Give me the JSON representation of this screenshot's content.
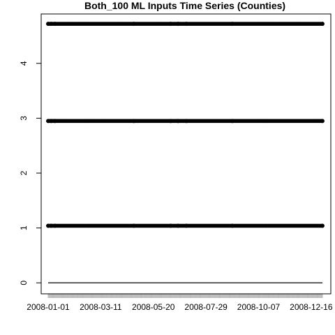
{
  "chart_data": {
    "type": "scatter",
    "title": "Both_100 ML Inputs Time Series (Counties)",
    "xlabel": "",
    "ylabel": "",
    "x_axis": {
      "type": "date",
      "range": [
        "2008-01-01",
        "2008-12-31"
      ],
      "ticks": [
        "2008-01-01",
        "2008-03-11",
        "2008-05-20",
        "2008-07-29",
        "2008-10-07",
        "2008-12-16"
      ]
    },
    "y_axis": {
      "range": [
        -0.2,
        4.9
      ],
      "ticks": [
        "0",
        "1",
        "2",
        "3",
        "4"
      ]
    },
    "grid": false,
    "legend": "none",
    "marker_color": "#000000",
    "series": [
      {
        "x_start": "2008-01-01",
        "x_end": "2008-12-31",
        "y": 4.72,
        "kind": "dense-points"
      },
      {
        "x_start": "2008-01-01",
        "x_end": "2008-12-31",
        "y": 2.95,
        "kind": "dense-points"
      },
      {
        "x_start": "2008-01-01",
        "x_end": "2008-12-31",
        "y": 1.04,
        "kind": "dense-points"
      },
      {
        "x_start": "2008-01-01",
        "x_end": "2008-12-31",
        "y": 0.0,
        "kind": "thin-line"
      }
    ],
    "highlights": [
      {
        "x": "2008-01-01",
        "y": 4.72
      },
      {
        "x": "2008-01-05",
        "y": 4.72
      },
      {
        "x": "2008-01-10",
        "y": 4.72
      },
      {
        "x": "2008-04-24",
        "y": 4.72
      },
      {
        "x": "2008-06-12",
        "y": 4.72
      },
      {
        "x": "2008-06-22",
        "y": 4.72
      },
      {
        "x": "2008-07-03",
        "y": 4.72
      },
      {
        "x": "2008-09-02",
        "y": 4.72
      },
      {
        "x": "2008-12-31",
        "y": 4.72
      },
      {
        "x": "2008-01-01",
        "y": 2.95
      },
      {
        "x": "2008-01-05",
        "y": 2.95
      },
      {
        "x": "2008-01-10",
        "y": 2.95
      },
      {
        "x": "2008-04-24",
        "y": 2.95
      },
      {
        "x": "2008-06-12",
        "y": 2.95
      },
      {
        "x": "2008-06-22",
        "y": 2.95
      },
      {
        "x": "2008-07-03",
        "y": 2.95
      },
      {
        "x": "2008-09-02",
        "y": 2.95
      },
      {
        "x": "2008-12-31",
        "y": 2.95
      },
      {
        "x": "2008-01-01",
        "y": 1.04
      },
      {
        "x": "2008-01-05",
        "y": 1.04
      },
      {
        "x": "2008-01-10",
        "y": 1.04
      },
      {
        "x": "2008-04-24",
        "y": 1.04
      },
      {
        "x": "2008-06-12",
        "y": 1.04
      },
      {
        "x": "2008-06-22",
        "y": 1.04
      },
      {
        "x": "2008-07-03",
        "y": 1.04
      },
      {
        "x": "2008-09-02",
        "y": 1.04
      },
      {
        "x": "2008-12-31",
        "y": 1.04
      }
    ]
  }
}
